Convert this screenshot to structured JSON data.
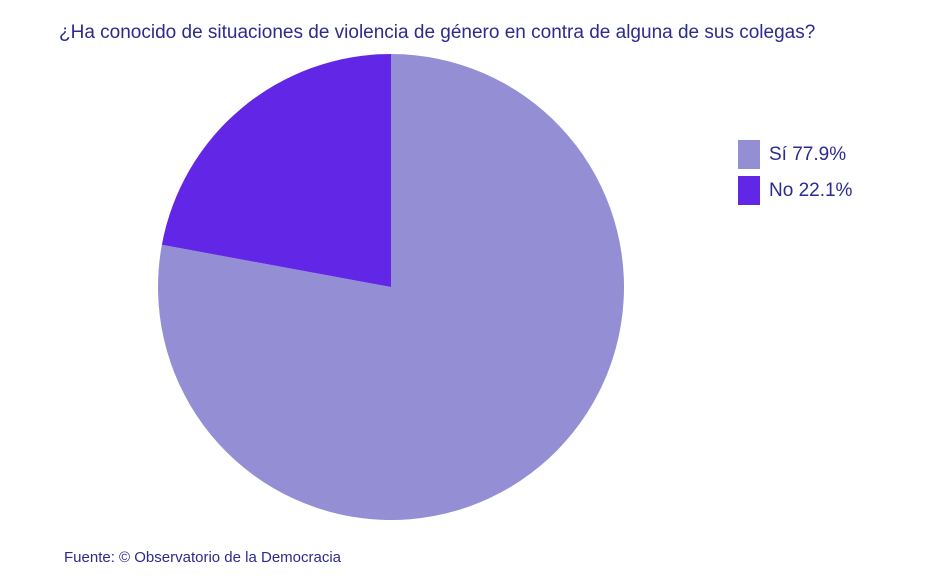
{
  "chart_data": {
    "type": "pie",
    "title": "¿Ha conocido de situaciones de violencia de género en contra de alguna de sus colegas?",
    "slices": [
      {
        "label": "Sí",
        "value": 77.9,
        "display": "Sí 77.9%",
        "color": "#948fd4"
      },
      {
        "label": "No",
        "value": 22.1,
        "display": "No 22.1%",
        "color": "#6227e6"
      }
    ],
    "legend_position": "right"
  },
  "source": "Fuente: © Observatorio de la Democracia"
}
